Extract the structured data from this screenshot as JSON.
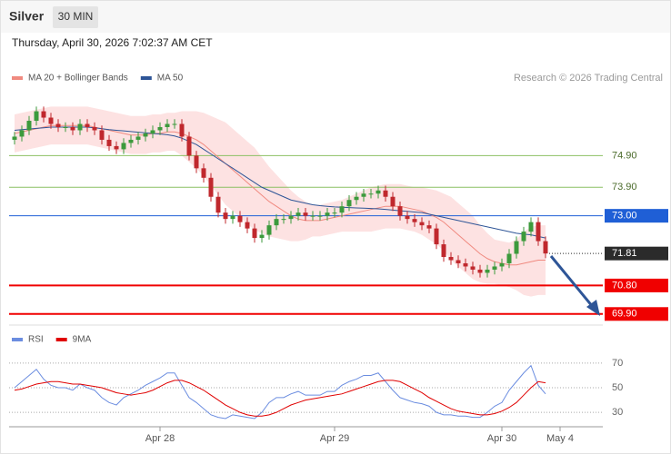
{
  "header": {
    "title": "Silver",
    "timeframe": "30 MIN",
    "datetime": "Thursday, April 30, 2026 7:02:37 AM CET"
  },
  "chart_data": [
    {
      "type": "candlestick",
      "categories": [
        null,
        null,
        null,
        null,
        null,
        null,
        null,
        null,
        null,
        null,
        null,
        null,
        null,
        null,
        null,
        null,
        null,
        null,
        null,
        null,
        "Apr 28",
        null,
        null,
        null,
        null,
        null,
        null,
        null,
        null,
        null,
        null,
        null,
        null,
        null,
        null,
        null,
        null,
        null,
        null,
        null,
        null,
        null,
        null,
        null,
        "Apr 29",
        null,
        null,
        null,
        null,
        null,
        null,
        null,
        null,
        null,
        null,
        null,
        null,
        null,
        null,
        null,
        null,
        null,
        null,
        null,
        null,
        null,
        null,
        "Apr 30",
        null,
        null,
        null,
        null,
        null,
        null,
        null,
        "May 4"
      ],
      "open": [
        75.4,
        75.5,
        75.7,
        76.0,
        76.3,
        76.1,
        75.9,
        75.8,
        75.8,
        75.7,
        75.9,
        75.8,
        75.7,
        75.4,
        75.2,
        75.1,
        75.3,
        75.4,
        75.5,
        75.6,
        75.7,
        75.8,
        75.9,
        75.9,
        75.5,
        74.9,
        74.5,
        74.2,
        73.6,
        73.1,
        72.9,
        73.0,
        72.8,
        72.6,
        72.3,
        72.4,
        72.7,
        72.9,
        72.9,
        73.0,
        73.1,
        73.0,
        73.0,
        73.0,
        73.1,
        73.1,
        73.3,
        73.5,
        73.6,
        73.7,
        73.7,
        73.8,
        73.6,
        73.3,
        73.0,
        72.9,
        72.8,
        72.7,
        72.6,
        72.1,
        71.7,
        71.6,
        71.5,
        71.4,
        71.3,
        71.2,
        71.3,
        71.4,
        71.5,
        71.8,
        72.2,
        72.5,
        72.8,
        72.2,
        null,
        null
      ],
      "high": [
        75.65,
        75.85,
        76.15,
        76.45,
        76.45,
        76.25,
        76.05,
        75.95,
        75.95,
        76.05,
        76.05,
        75.95,
        75.85,
        75.55,
        75.35,
        75.45,
        75.55,
        75.65,
        75.75,
        75.85,
        75.95,
        76.05,
        76.05,
        76.05,
        75.65,
        75.05,
        74.65,
        74.35,
        73.75,
        73.25,
        73.15,
        73.15,
        72.95,
        72.75,
        72.55,
        72.85,
        73.05,
        73.05,
        73.15,
        73.25,
        73.25,
        73.15,
        73.15,
        73.25,
        73.25,
        73.45,
        73.65,
        73.75,
        73.85,
        73.85,
        73.95,
        73.95,
        73.75,
        73.45,
        73.15,
        73.05,
        72.95,
        72.85,
        72.75,
        72.25,
        71.85,
        71.75,
        71.65,
        71.55,
        71.45,
        71.45,
        71.55,
        71.65,
        71.95,
        72.35,
        72.65,
        72.95,
        72.95,
        72.35,
        null,
        null
      ],
      "low": [
        75.25,
        75.35,
        75.55,
        75.85,
        75.95,
        75.75,
        75.65,
        75.65,
        75.55,
        75.55,
        75.65,
        75.55,
        75.25,
        75.05,
        74.95,
        74.95,
        75.15,
        75.25,
        75.35,
        75.45,
        75.55,
        75.65,
        75.75,
        75.35,
        74.75,
        74.35,
        74.05,
        73.45,
        72.95,
        72.75,
        72.75,
        72.65,
        72.45,
        72.15,
        72.15,
        72.25,
        72.55,
        72.75,
        72.75,
        72.85,
        72.85,
        72.85,
        72.85,
        72.85,
        72.95,
        72.95,
        73.15,
        73.35,
        73.45,
        73.55,
        73.55,
        73.45,
        73.15,
        72.85,
        72.75,
        72.65,
        72.55,
        72.45,
        71.95,
        71.55,
        71.45,
        71.35,
        71.25,
        71.15,
        71.05,
        71.05,
        71.15,
        71.25,
        71.35,
        71.65,
        72.05,
        72.35,
        72.05,
        71.66,
        null,
        null
      ],
      "close": [
        75.5,
        75.7,
        76.0,
        76.3,
        76.1,
        75.9,
        75.8,
        75.8,
        75.7,
        75.9,
        75.8,
        75.7,
        75.4,
        75.2,
        75.1,
        75.3,
        75.4,
        75.5,
        75.6,
        75.7,
        75.8,
        75.9,
        75.9,
        75.5,
        74.9,
        74.5,
        74.2,
        73.6,
        73.1,
        72.9,
        73.0,
        72.8,
        72.6,
        72.3,
        72.4,
        72.7,
        72.9,
        72.9,
        73.0,
        73.1,
        73.0,
        73.0,
        73.0,
        73.1,
        73.1,
        73.3,
        73.5,
        73.6,
        73.7,
        73.7,
        73.8,
        73.6,
        73.3,
        73.0,
        72.9,
        72.8,
        72.7,
        72.6,
        72.1,
        71.7,
        71.6,
        71.5,
        71.4,
        71.3,
        71.2,
        71.3,
        71.4,
        71.5,
        71.8,
        72.2,
        72.5,
        72.8,
        72.2,
        71.81,
        null,
        null
      ],
      "up_color": "#3c9a3c",
      "down_color": "#c0282d",
      "series": [
        {
          "name": "MA 20 + Bollinger Bands",
          "color": "#f08a80",
          "band_color": "#fde2e2",
          "values": [
            75.6,
            75.65,
            75.7,
            75.75,
            75.8,
            75.85,
            75.85,
            75.85,
            75.85,
            75.85,
            75.85,
            75.8,
            75.75,
            75.7,
            75.65,
            75.6,
            75.55,
            75.55,
            75.55,
            75.6,
            75.6,
            75.65,
            75.65,
            75.6,
            75.5,
            75.4,
            75.25,
            75.05,
            74.85,
            74.65,
            74.45,
            74.25,
            74.05,
            73.85,
            73.65,
            73.45,
            73.3,
            73.15,
            73.0,
            72.9,
            72.85,
            72.85,
            72.85,
            72.9,
            72.95,
            73.0,
            73.05,
            73.1,
            73.15,
            73.2,
            73.25,
            73.3,
            73.3,
            73.3,
            73.25,
            73.2,
            73.15,
            73.05,
            72.95,
            72.8,
            72.6,
            72.4,
            72.2,
            72.0,
            71.8,
            71.65,
            71.55,
            71.5,
            71.45,
            71.45,
            71.5,
            71.55,
            71.6,
            71.6,
            null,
            null
          ],
          "upper": [
            76.2,
            76.25,
            76.3,
            76.35,
            76.4,
            76.45,
            76.45,
            76.45,
            76.45,
            76.45,
            76.45,
            76.4,
            76.35,
            76.3,
            76.25,
            76.2,
            76.15,
            76.15,
            76.15,
            76.2,
            76.2,
            76.25,
            76.25,
            76.3,
            76.3,
            76.3,
            76.25,
            76.15,
            76.05,
            75.95,
            75.75,
            75.55,
            75.35,
            75.15,
            74.85,
            74.55,
            74.3,
            74.05,
            73.8,
            73.6,
            73.45,
            73.35,
            73.35,
            73.4,
            73.45,
            73.5,
            73.6,
            73.7,
            73.8,
            73.9,
            73.95,
            74.0,
            74.0,
            74.0,
            73.95,
            73.9,
            73.9,
            73.85,
            73.8,
            73.7,
            73.6,
            73.4,
            73.2,
            73.0,
            72.7,
            72.45,
            72.25,
            72.2,
            72.15,
            72.25,
            72.5,
            72.65,
            72.7,
            72.7,
            null,
            null
          ],
          "lower": [
            75.0,
            75.05,
            75.1,
            75.15,
            75.2,
            75.25,
            75.25,
            75.25,
            75.25,
            75.25,
            75.25,
            75.2,
            75.15,
            75.1,
            75.05,
            75.0,
            74.95,
            74.95,
            74.95,
            75.0,
            75.0,
            75.05,
            75.05,
            74.9,
            74.7,
            74.5,
            74.25,
            73.95,
            73.65,
            73.35,
            73.15,
            72.95,
            72.75,
            72.55,
            72.45,
            72.35,
            72.3,
            72.25,
            72.2,
            72.2,
            72.25,
            72.35,
            72.35,
            72.4,
            72.45,
            72.5,
            72.5,
            72.5,
            72.5,
            72.5,
            72.55,
            72.6,
            72.6,
            72.6,
            72.55,
            72.5,
            72.4,
            72.25,
            72.1,
            71.9,
            71.6,
            71.4,
            71.2,
            71.0,
            70.9,
            70.85,
            70.85,
            70.8,
            70.75,
            70.65,
            70.5,
            70.45,
            70.5,
            70.5,
            null,
            null
          ]
        },
        {
          "name": "MA 50",
          "color": "#2e5597",
          "values": [
            75.7,
            75.72,
            75.74,
            75.76,
            75.78,
            75.8,
            75.8,
            75.8,
            75.8,
            75.8,
            75.8,
            75.78,
            75.75,
            75.72,
            75.7,
            75.68,
            75.66,
            75.64,
            75.62,
            75.6,
            75.58,
            75.56,
            75.52,
            75.45,
            75.35,
            75.25,
            75.1,
            74.95,
            74.8,
            74.65,
            74.5,
            74.35,
            74.2,
            74.05,
            73.9,
            73.8,
            73.7,
            73.6,
            73.5,
            73.45,
            73.4,
            73.35,
            73.32,
            73.3,
            73.28,
            73.27,
            73.26,
            73.25,
            73.24,
            73.23,
            73.22,
            73.2,
            73.18,
            73.16,
            73.14,
            73.12,
            73.1,
            73.05,
            73.0,
            72.95,
            72.9,
            72.85,
            72.8,
            72.75,
            72.7,
            72.65,
            72.6,
            72.55,
            72.5,
            72.45,
            72.42,
            72.4,
            72.35,
            72.3,
            null,
            null
          ]
        }
      ],
      "ylim": [
        69.55,
        77.95
      ],
      "levels": [
        {
          "value": 74.9,
          "label": "74.90",
          "color": "#8cc063",
          "line": "solid",
          "boxed": false
        },
        {
          "value": 73.9,
          "label": "73.90",
          "color": "#8cc063",
          "line": "solid",
          "boxed": false
        },
        {
          "value": 73.0,
          "label": "73.00",
          "color": "#1f5fd6",
          "line": "solid",
          "boxed": true
        },
        {
          "value": 71.81,
          "label": "71.81",
          "color": "#2b2b2b",
          "line": "dotted",
          "boxed": true
        },
        {
          "value": 70.8,
          "label": "70.80",
          "color": "#f00000",
          "line": "thick",
          "boxed": true
        },
        {
          "value": 69.9,
          "label": "69.90",
          "color": "#f00000",
          "line": "thick",
          "boxed": true
        }
      ],
      "credit": "Research © 2026 Trading Central"
    },
    {
      "type": "line",
      "series": [
        {
          "name": "RSI",
          "color": "#6b8de0",
          "values": [
            50,
            55,
            60,
            65,
            57,
            52,
            50,
            50,
            48,
            53,
            50,
            48,
            42,
            38,
            36,
            42,
            45,
            48,
            52,
            55,
            58,
            62,
            62,
            52,
            42,
            38,
            33,
            28,
            26,
            25,
            28,
            27,
            26,
            25,
            30,
            38,
            42,
            42,
            45,
            47,
            44,
            44,
            44,
            47,
            47,
            52,
            55,
            57,
            60,
            60,
            62,
            55,
            48,
            42,
            40,
            38,
            37,
            35,
            30,
            28,
            28,
            27,
            27,
            26,
            26,
            30,
            35,
            38,
            48,
            55,
            62,
            68,
            52,
            45,
            null,
            null
          ]
        },
        {
          "name": "9MA",
          "color": "#e00000",
          "values": [
            48,
            49,
            51,
            53,
            54,
            55,
            55,
            54,
            53,
            53,
            52,
            51,
            50,
            48,
            46,
            45,
            44,
            45,
            46,
            48,
            51,
            54,
            56,
            56,
            54,
            51,
            48,
            44,
            40,
            36,
            33,
            30,
            28,
            27,
            27,
            28,
            30,
            33,
            36,
            38,
            40,
            41,
            42,
            43,
            44,
            45,
            47,
            49,
            51,
            53,
            55,
            56,
            56,
            55,
            52,
            49,
            46,
            42,
            39,
            36,
            33,
            31,
            30,
            29,
            28,
            28,
            29,
            31,
            34,
            38,
            44,
            50,
            55,
            54,
            null,
            null
          ]
        }
      ],
      "ylim": [
        22,
        81
      ],
      "yticks": [
        30,
        50,
        70
      ]
    }
  ]
}
